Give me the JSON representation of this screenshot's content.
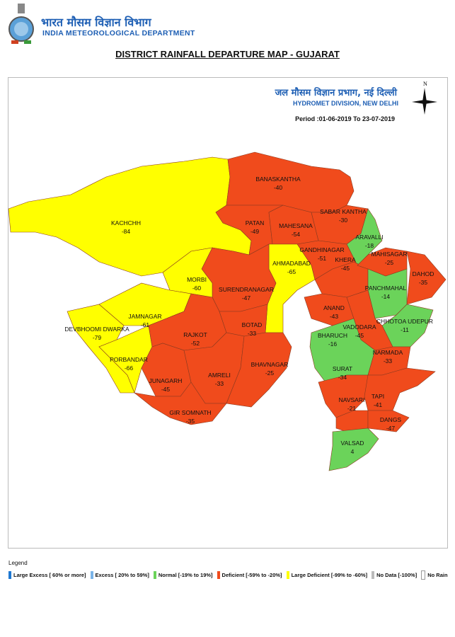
{
  "header": {
    "org_hindi": "भारत मौसम विज्ञान विभाग",
    "org_english": "INDIA METEOROLOGICAL DEPARTMENT",
    "title": "DISTRICT RAINFALL DEPARTURE MAP - GUJARAT"
  },
  "map_header": {
    "division_hindi": "जल मौसम विज्ञान प्रभाग, नई दिल्ली",
    "division_english": "HYDROMET DIVISION, NEW DELHI",
    "period": "Period :01-06-2019 To 23-07-2019",
    "north": "N"
  },
  "colors": {
    "large_excess": "#1f78d1",
    "excess": "#7ab4e8",
    "normal": "#6bd35a",
    "deficient": "#f04b1c",
    "large_deficient": "#ffff00",
    "no_data": "#bbbbbb",
    "no_rain": "#ffffff"
  },
  "districts": [
    {
      "name": "KACHCHH",
      "value": "-84",
      "category": "large_deficient"
    },
    {
      "name": "BANASKANTHA",
      "value": "-40",
      "category": "deficient"
    },
    {
      "name": "PATAN",
      "value": "-49",
      "category": "deficient"
    },
    {
      "name": "MAHESANA",
      "value": "-54",
      "category": "deficient"
    },
    {
      "name": "SABAR KANTHA",
      "value": "-30",
      "category": "deficient"
    },
    {
      "name": "ARAVALLI",
      "value": "-18",
      "category": "normal"
    },
    {
      "name": "GANDHINAGAR",
      "value": "-51",
      "category": "deficient"
    },
    {
      "name": "AHMADABAD",
      "value": "-65",
      "category": "large_deficient"
    },
    {
      "name": "SURENDRANAGAR",
      "value": "-47",
      "category": "deficient"
    },
    {
      "name": "MORBI",
      "value": "-60",
      "category": "large_deficient"
    },
    {
      "name": "KHERA",
      "value": "-45",
      "category": "deficient"
    },
    {
      "name": "MAHISAGAR",
      "value": "-25",
      "category": "deficient"
    },
    {
      "name": "DAHOD",
      "value": "-35",
      "category": "deficient"
    },
    {
      "name": "PANCHMAHAL",
      "value": "-14",
      "category": "normal"
    },
    {
      "name": "CHHOTOA UDEPUR",
      "value": "-11",
      "category": "normal"
    },
    {
      "name": "ANAND",
      "value": "-43",
      "category": "deficient"
    },
    {
      "name": "VADODARA",
      "value": "-45",
      "category": "deficient"
    },
    {
      "name": "BHARUCH",
      "value": "-16",
      "category": "normal"
    },
    {
      "name": "NARMADA",
      "value": "-33",
      "category": "deficient"
    },
    {
      "name": "SURAT",
      "value": "-34",
      "category": "deficient"
    },
    {
      "name": "TAPI",
      "value": "-41",
      "category": "deficient"
    },
    {
      "name": "NAVSARI",
      "value": "-21",
      "category": "deficient"
    },
    {
      "name": "DANGS",
      "value": "-47",
      "category": "deficient"
    },
    {
      "name": "VALSAD",
      "value": "4",
      "category": "normal"
    },
    {
      "name": "JAMNAGAR",
      "value": "-61",
      "category": "large_deficient"
    },
    {
      "name": "DEVBHOOMI DWARKA",
      "value": "-79",
      "category": "large_deficient"
    },
    {
      "name": "PORBANDAR",
      "value": "-66",
      "category": "large_deficient"
    },
    {
      "name": "RAJKOT",
      "value": "-52",
      "category": "deficient"
    },
    {
      "name": "BOTAD",
      "value": "-33",
      "category": "deficient"
    },
    {
      "name": "JUNAGARH",
      "value": "-45",
      "category": "deficient"
    },
    {
      "name": "AMRELI",
      "value": "-33",
      "category": "deficient"
    },
    {
      "name": "BHAVNAGAR",
      "value": "-25",
      "category": "deficient"
    },
    {
      "name": "GIR SOMNATH",
      "value": "-35",
      "category": "deficient"
    }
  ],
  "legend": {
    "title": "Legend",
    "items": [
      {
        "key": "large_excess",
        "label": "Large Excess [ 60% or more]"
      },
      {
        "key": "excess",
        "label": "Excess [ 20% to 59%]"
      },
      {
        "key": "normal",
        "label": "Normal [-19% to 19%]"
      },
      {
        "key": "deficient",
        "label": "Deficient [-59% to -20%]"
      },
      {
        "key": "large_deficient",
        "label": "Large Deficient [-99% to -60%]"
      },
      {
        "key": "no_data",
        "label": "No Data  [-100%]"
      },
      {
        "key": "no_rain",
        "label": "No Rain"
      }
    ]
  }
}
